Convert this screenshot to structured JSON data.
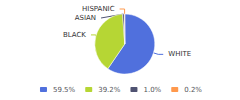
{
  "chart_data": {
    "type": "pie",
    "categories": [
      "WHITE",
      "BLACK",
      "ASIAN",
      "HISPANIC"
    ],
    "values": [
      59.5,
      39.2,
      1.0,
      0.2
    ],
    "value_labels": [
      "59.5%",
      "39.2%",
      "1.0%",
      "0.2%"
    ],
    "legend": "bottom"
  }
}
